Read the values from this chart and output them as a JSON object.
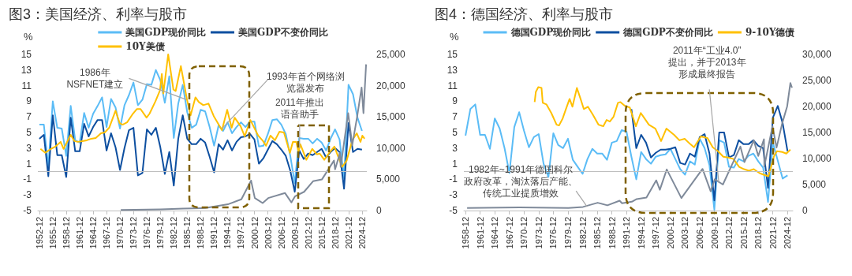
{
  "chart_data": [
    {
      "type": "line",
      "title": "图3：美国经济、利率与股市",
      "ylabel": "%",
      "marker": "none",
      "legend": "top",
      "xlim": [
        "1952-08",
        "2026-01"
      ],
      "xticks": [
        "1952-12",
        "1955-12",
        "1958-12",
        "1961-12",
        "1964-12",
        "1967-12",
        "1970-12",
        "1973-12",
        "1976-12",
        "1979-12",
        "1982-12",
        "1985-12",
        "1988-12",
        "1991-12",
        "1994-12",
        "1997-12",
        "2000-12",
        "2003-12",
        "2006-12",
        "2009-12",
        "2012-12",
        "2015-12",
        "2018-12",
        "2021-12",
        "2024-12"
      ],
      "ylim": [
        -5,
        15
      ],
      "yticks": [
        -5,
        -3,
        -1,
        1,
        3,
        5,
        7,
        9,
        11,
        13,
        15
      ],
      "y2lim": [
        0,
        25000
      ],
      "y2ticks": [
        0,
        {
          "value": 5000,
          "label": "5,000"
        },
        {
          "value": 10000,
          "label": "10,000"
        },
        {
          "value": 15000,
          "label": "15,000"
        },
        {
          "value": 20000,
          "label": "20,000"
        },
        {
          "value": 25000,
          "label": "25,000"
        }
      ],
      "ref_lines": [
        {
          "axis": "y",
          "value": 0,
          "color": "#bfbfbf"
        }
      ],
      "annotations": [
        {
          "text": "1986年NSFNET建立",
          "x": "1985-10",
          "y": 9.2
        },
        {
          "text": "1993年首个网络浏览器发布",
          "x": "1993-09",
          "y": 5.5
        },
        {
          "text": "2011年推出语音助手",
          "x": "2011-01",
          "y": 3.0
        }
      ],
      "series": [
        {
          "name": "美国GDP现价同比",
          "color": "#5bbcf6",
          "x": [
            "1952-12",
            "1953-12",
            "1954-12",
            "1955-12",
            "1956-12",
            "1957-12",
            "1958-12",
            "1959-12",
            "1960-12",
            "1961-12",
            "1962-12",
            "1963-12",
            "1964-12",
            "1965-12",
            "1966-12",
            "1967-12",
            "1968-12",
            "1969-12",
            "1970-12",
            "1971-12",
            "1972-12",
            "1973-12",
            "1974-12",
            "1975-12",
            "1976-12",
            "1977-12",
            "1978-12",
            "1979-12",
            "1980-12",
            "1981-12",
            "1982-12",
            "1983-12",
            "1984-12",
            "1985-12",
            "1986-12",
            "1987-12",
            "1988-12",
            "1989-12",
            "1990-12",
            "1991-12",
            "1992-12",
            "1993-12",
            "1994-12",
            "1995-12",
            "1996-12",
            "1997-12",
            "1998-12",
            "1999-12",
            "2000-12",
            "2001-12",
            "2002-12",
            "2003-12",
            "2004-12",
            "2005-12",
            "2006-12",
            "2007-12",
            "2008-12",
            "2009-12",
            "2010-12",
            "2011-12",
            "2012-12",
            "2013-12",
            "2014-12",
            "2015-12",
            "2016-12",
            "2017-12",
            "2018-12",
            "2019-12",
            "2020-12",
            "2021-12",
            "2022-12",
            "2023-12",
            "2024-12"
          ],
          "values": [
            6.0,
            6.0,
            0.6,
            9.0,
            5.6,
            5.5,
            2.0,
            8.4,
            4.0,
            3.7,
            7.5,
            5.6,
            7.4,
            8.4,
            9.5,
            5.7,
            9.3,
            8.2,
            5.5,
            8.5,
            9.8,
            11.4,
            8.5,
            9.2,
            11.2,
            11.1,
            13.0,
            11.7,
            8.8,
            12.2,
            4.3,
            8.7,
            11.1,
            7.6,
            5.6,
            6.0,
            7.9,
            7.7,
            5.7,
            3.3,
            5.9,
            5.2,
            6.3,
            4.9,
            5.7,
            6.3,
            5.7,
            6.4,
            6.4,
            3.2,
            3.3,
            4.8,
            6.6,
            6.7,
            6.0,
            4.8,
            2.0,
            -1.5,
            4.3,
            4.2,
            4.2,
            3.6,
            4.2,
            3.7,
            2.7,
            4.2,
            5.4,
            4.1,
            -0.9,
            11.1,
            9.9,
            6.9,
            5.2
          ]
        },
        {
          "name": "美国GDP不变价同比",
          "color": "#0d4fa0",
          "x": [
            "1952-12",
            "1953-12",
            "1954-12",
            "1955-12",
            "1956-12",
            "1957-12",
            "1958-12",
            "1959-12",
            "1960-12",
            "1961-12",
            "1962-12",
            "1963-12",
            "1964-12",
            "1965-12",
            "1966-12",
            "1967-12",
            "1968-12",
            "1969-12",
            "1970-12",
            "1971-12",
            "1972-12",
            "1973-12",
            "1974-12",
            "1975-12",
            "1976-12",
            "1977-12",
            "1978-12",
            "1979-12",
            "1980-12",
            "1981-12",
            "1982-12",
            "1983-12",
            "1984-12",
            "1985-12",
            "1986-12",
            "1987-12",
            "1988-12",
            "1989-12",
            "1990-12",
            "1991-12",
            "1992-12",
            "1993-12",
            "1994-12",
            "1995-12",
            "1996-12",
            "1997-12",
            "1998-12",
            "1999-12",
            "2000-12",
            "2001-12",
            "2002-12",
            "2003-12",
            "2004-12",
            "2005-12",
            "2006-12",
            "2007-12",
            "2008-12",
            "2009-12",
            "2010-12",
            "2011-12",
            "2012-12",
            "2013-12",
            "2014-12",
            "2015-12",
            "2016-12",
            "2017-12",
            "2018-12",
            "2019-12",
            "2020-12",
            "2021-12",
            "2022-12",
            "2023-12",
            "2024-12"
          ],
          "values": [
            4.2,
            4.7,
            -0.6,
            7.2,
            2.1,
            2.1,
            -0.7,
            6.9,
            2.6,
            2.6,
            6.1,
            4.5,
            5.7,
            6.6,
            6.6,
            2.7,
            4.9,
            3.1,
            0.2,
            3.0,
            5.3,
            5.6,
            -0.5,
            -0.2,
            5.4,
            4.7,
            5.6,
            3.1,
            -0.3,
            2.5,
            -1.8,
            4.2,
            7.2,
            4.2,
            3.5,
            3.5,
            4.2,
            3.7,
            1.9,
            -0.1,
            3.5,
            2.8,
            4.0,
            2.7,
            3.8,
            4.4,
            4.5,
            4.8,
            4.1,
            1.0,
            1.7,
            2.8,
            3.9,
            3.5,
            2.8,
            2.0,
            0.1,
            -2.6,
            2.7,
            1.6,
            2.3,
            2.1,
            2.5,
            2.9,
            1.8,
            2.5,
            3.0,
            2.5,
            -2.2,
            6.2,
            2.5,
            2.9,
            2.8
          ]
        },
        {
          "name": "10Y美债",
          "color": "#ffc000",
          "x": [
            "1953-03",
            "1954-04",
            "1955-07",
            "1956-07",
            "1957-09",
            "1958-05",
            "1959-12",
            "1960-10",
            "1961-07",
            "1962-07",
            "1963-07",
            "1964-07",
            "1965-07",
            "1966-09",
            "1967-07",
            "1968-07",
            "1969-12",
            "1970-11",
            "1971-07",
            "1972-07",
            "1973-09",
            "1974-09",
            "1975-07",
            "1976-11",
            "1977-07",
            "1978-11",
            "1979-11",
            "1980-04",
            "1980-08",
            "1981-09",
            "1982-11",
            "1983-05",
            "1984-07",
            "1985-11",
            "1986-09",
            "1987-10",
            "1988-07",
            "1989-07",
            "1990-09",
            "1991-11",
            "1993-09",
            "1994-11",
            "1995-11",
            "1996-07",
            "1997-11",
            "1998-10",
            "2000-01",
            "2001-10",
            "2002-11",
            "2003-07",
            "2004-07",
            "2005-07",
            "2006-07",
            "2007-07",
            "2008-11",
            "2009-07",
            "2010-04",
            "2010-10",
            "2011-03",
            "2012-07",
            "2013-11",
            "2014-11",
            "2015-07",
            "2016-07",
            "2017-07",
            "2018-10",
            "2019-10",
            "2020-07",
            "2021-07",
            "2022-10",
            "2023-10",
            "2024-08",
            "2025-01",
            "2025-07"
          ],
          "values": [
            2.9,
            2.4,
            2.9,
            3.2,
            3.8,
            2.9,
            4.7,
            3.9,
            3.8,
            3.9,
            4.0,
            4.2,
            4.3,
            4.9,
            5.0,
            5.6,
            7.8,
            6.2,
            6.0,
            6.3,
            7.3,
            8.0,
            8.0,
            6.9,
            7.4,
            9.0,
            10.4,
            12.5,
            10.0,
            15.0,
            10.5,
            10.3,
            13.5,
            9.3,
            7.2,
            9.5,
            8.9,
            8.5,
            8.7,
            7.1,
            5.3,
            7.9,
            5.6,
            6.9,
            5.8,
            4.5,
            6.6,
            4.6,
            3.9,
            3.3,
            4.6,
            4.0,
            5.1,
            5.0,
            2.4,
            3.8,
            3.8,
            2.5,
            3.5,
            1.5,
            2.9,
            2.2,
            2.3,
            1.5,
            2.3,
            3.2,
            1.7,
            0.6,
            1.4,
            4.0,
            4.9,
            3.8,
            4.6,
            4.2
          ]
        },
        {
          "color": "#7f8a9a",
          "axis": "y2",
          "x": [
            "1971-02",
            "1980-01",
            "1985-01",
            "1990-01",
            "1995-01",
            "1998-01",
            "2000-03",
            "2001-01",
            "2002-10",
            "2004-01",
            "2007-10",
            "2009-03",
            "2010-01",
            "2012-01",
            "2014-01",
            "2016-01",
            "2018-09",
            "2018-12",
            "2020-01",
            "2020-03",
            "2021-11",
            "2022-10",
            "2023-11",
            "2024-11",
            "2025-04",
            "2025-11"
          ],
          "values": [
            100,
            200,
            300,
            400,
            1000,
            1800,
            4800,
            2000,
            1200,
            2000,
            2800,
            1300,
            2300,
            3000,
            4700,
            5000,
            8000,
            6600,
            9200,
            7000,
            15600,
            10500,
            15000,
            19700,
            15600,
            23400
          ]
        }
      ]
    },
    {
      "type": "line",
      "title": "图4：德国经济、利率与股市",
      "ylabel": "%",
      "marker": "none",
      "legend": "top",
      "xlim": [
        "1958-08",
        "2026-01"
      ],
      "xticks": [
        "1958-12",
        "1961-12",
        "1964-12",
        "1967-12",
        "1970-12",
        "1973-12",
        "1976-12",
        "1979-12",
        "1982-12",
        "1985-12",
        "1988-12",
        "1991-12",
        "1994-12",
        "1997-12",
        "2000-12",
        "2003-12",
        "2006-12",
        "2009-12",
        "2012-12",
        "2015-12",
        "2018-12",
        "2021-12",
        "2024-12"
      ],
      "ylim": [
        -5,
        15
      ],
      "yticks": [
        -5,
        -3,
        -1,
        1,
        3,
        5,
        7,
        9,
        11,
        13,
        15
      ],
      "y2lim": [
        0,
        30000
      ],
      "y2ticks": [
        0,
        {
          "value": 5000,
          "label": "5,000"
        },
        {
          "value": 10000,
          "label": "10,000"
        },
        {
          "value": 15000,
          "label": "15,000"
        },
        {
          "value": 20000,
          "label": "20,000"
        },
        {
          "value": 25000,
          "label": "25,000"
        },
        {
          "value": 30000,
          "label": "30,000"
        }
      ],
      "ref_lines": [
        {
          "axis": "y",
          "value": 0,
          "color": "#bfbfbf"
        }
      ],
      "annotations": [
        {
          "text": "1982年~1991年德国科尔政府改革，淘汰落后产能、传统工业提质增效",
          "x": "1983-11",
          "y": -4.5
        },
        {
          "text": "2011年“工业4.0”提出，并于2013年形成最终报告",
          "x": "2010-11",
          "y": -1.4
        }
      ],
      "series": [
        {
          "name": "德国GDP现价同比",
          "color": "#5bbcf6",
          "x": [
            "1958-12",
            "1959-12",
            "1960-12",
            "1961-12",
            "1962-12",
            "1963-12",
            "1964-12",
            "1965-12",
            "1966-12",
            "1967-12",
            "1968-12",
            "1969-12",
            "1970-12",
            "1971-12",
            "1972-12",
            "1973-12",
            "1974-12",
            "1975-12",
            "1976-12",
            "1977-12",
            "1978-12",
            "1979-12",
            "1980-12",
            "1981-12",
            "1982-12",
            "1983-12",
            "1984-12",
            "1985-12",
            "1986-12",
            "1987-12",
            "1988-12",
            "1989-12",
            "1990-12",
            "1991-12",
            "1992-12",
            "1993-12",
            "1994-12",
            "1995-12",
            "1996-12",
            "1997-12",
            "1998-12",
            "1999-12",
            "2000-12",
            "2001-12",
            "2002-12",
            "2003-12",
            "2004-12",
            "2005-12",
            "2006-12",
            "2007-12",
            "2008-12",
            "2009-12",
            "2010-12",
            "2011-12",
            "2012-12",
            "2013-12",
            "2014-12",
            "2015-12",
            "2016-12",
            "2017-12",
            "2018-12",
            "2019-12",
            "2020-12",
            "2021-12",
            "2022-12",
            "2023-12",
            "2024-12"
          ],
          "values": [
            4.6,
            8.0,
            8.6,
            4.7,
            4.7,
            2.9,
            6.8,
            5.5,
            3.0,
            -0.2,
            5.7,
            7.6,
            5.2,
            3.1,
            4.4,
            4.8,
            1.0,
            -0.7,
            4.9,
            3.4,
            3.0,
            4.2,
            1.5,
            0.6,
            -0.3,
            1.6,
            2.9,
            2.3,
            2.3,
            1.5,
            3.7,
            3.9,
            5.3,
            5.1,
            1.9,
            -1.0,
            2.5,
            1.6,
            1.0,
            1.9,
            2.1,
            2.2,
            2.9,
            1.6,
            0.3,
            -0.4,
            1.3,
            0.9,
            4.2,
            3.0,
            0.8,
            -4.9,
            4.0,
            3.7,
            0.6,
            0.5,
            1.6,
            1.3,
            2.0,
            2.3,
            1.3,
            0.5,
            -3.9,
            3.7,
            1.4,
            -0.9,
            -0.5
          ]
        },
        {
          "name": "德国GDP不变价同比",
          "color": "#0d4fa0",
          "x": [
            "1992-12",
            "1993-12",
            "1994-12",
            "1995-12",
            "1996-12",
            "1997-12",
            "1998-12",
            "1999-12",
            "2000-12",
            "2001-12",
            "2002-12",
            "2003-12",
            "2004-12",
            "2005-12",
            "2006-12",
            "2007-12",
            "2008-12",
            "2009-12",
            "2010-12",
            "2011-12",
            "2012-12",
            "2013-12",
            "2014-12",
            "2015-12",
            "2016-12",
            "2017-12",
            "2018-12",
            "2019-12",
            "2020-12",
            "2021-12",
            "2022-12",
            "2023-12",
            "2024-12"
          ],
          "values": [
            8.0,
            3.0,
            4.7,
            3.7,
            1.8,
            2.4,
            2.8,
            2.8,
            2.9,
            3.1,
            1.1,
            0.9,
            2.3,
            1.9,
            4.4,
            4.8,
            2.3,
            -3.7,
            5.0,
            5.0,
            1.8,
            2.1,
            4.0,
            3.5,
            3.5,
            4.0,
            3.3,
            3.0,
            -2.1,
            6.9,
            8.4,
            6.2,
            2.6
          ]
        },
        {
          "name": "9-10Y德债",
          "color": "#ffc000",
          "x": [
            "1973-02",
            "1973-05",
            "1973-11",
            "1974-07",
            "1974-10",
            "1975-07",
            "1976-07",
            "1977-08",
            "1978-02",
            "1978-11",
            "1979-07",
            "1980-04",
            "1980-11",
            "1981-10",
            "1982-07",
            "1983-03",
            "1984-01",
            "1985-01",
            "1986-03",
            "1987-03",
            "1987-11",
            "1988-07",
            "1989-04",
            "1990-03",
            "1990-09",
            "1991-08",
            "1992-08",
            "1993-11",
            "1994-11",
            "1995-07",
            "1996-07",
            "1997-11",
            "1999-01",
            "2000-02",
            "2001-09",
            "2002-10",
            "2003-11",
            "2005-01",
            "2005-10",
            "2007-03",
            "2008-07",
            "2009-08",
            "2010-09",
            "2011-10",
            "2012-10",
            "2013-11",
            "2015-01",
            "2016-01",
            "2017-01",
            "2018-01",
            "2019-03",
            "2020-01",
            "2021-01",
            "2022-03",
            "2022-10",
            "2023-11",
            "2024-09",
            "2025-07"
          ],
          "values": [
            8.9,
            10.2,
            10.8,
            10.7,
            8.8,
            8.6,
            7.5,
            6.0,
            5.9,
            6.8,
            8.0,
            9.3,
            8.3,
            10.7,
            9.3,
            8.0,
            8.3,
            7.3,
            6.0,
            5.8,
            6.6,
            6.4,
            7.0,
            8.8,
            8.9,
            8.4,
            8.2,
            5.8,
            7.5,
            6.9,
            6.0,
            5.5,
            3.9,
            5.5,
            4.7,
            4.0,
            4.2,
            3.5,
            3.1,
            4.5,
            4.3,
            3.1,
            2.6,
            1.9,
            1.8,
            1.6,
            0.6,
            0.3,
            0.1,
            0.3,
            -0.2,
            -0.4,
            -0.6,
            2.0,
            2.6,
            2.5,
            2.3,
            2.8
          ]
        },
        {
          "color": "#7f8a9a",
          "axis": "y2",
          "x": [
            "1959-04",
            "1970-01",
            "1980-01",
            "1983-01",
            "1986-01",
            "1988-01",
            "1990-07",
            "1991-01",
            "1993-01",
            "1994-01",
            "1996-01",
            "1998-01",
            "1998-10",
            "2000-03",
            "2003-03",
            "2007-07",
            "2009-03",
            "2010-01",
            "2011-09",
            "2015-04",
            "2016-02",
            "2018-01",
            "2018-12",
            "2020-02",
            "2020-03",
            "2021-11",
            "2022-09",
            "2023-11",
            "2024-11",
            "2025-07",
            "2025-11"
          ],
          "values": [
            500,
            600,
            500,
            700,
            1500,
            1000,
            1900,
            1400,
            1700,
            2200,
            2500,
            5800,
            4000,
            7900,
            2400,
            8000,
            3700,
            6000,
            5000,
            12300,
            9300,
            13500,
            10500,
            13700,
            8500,
            16200,
            12100,
            16800,
            20000,
            24500,
            23600
          ]
        }
      ]
    }
  ]
}
